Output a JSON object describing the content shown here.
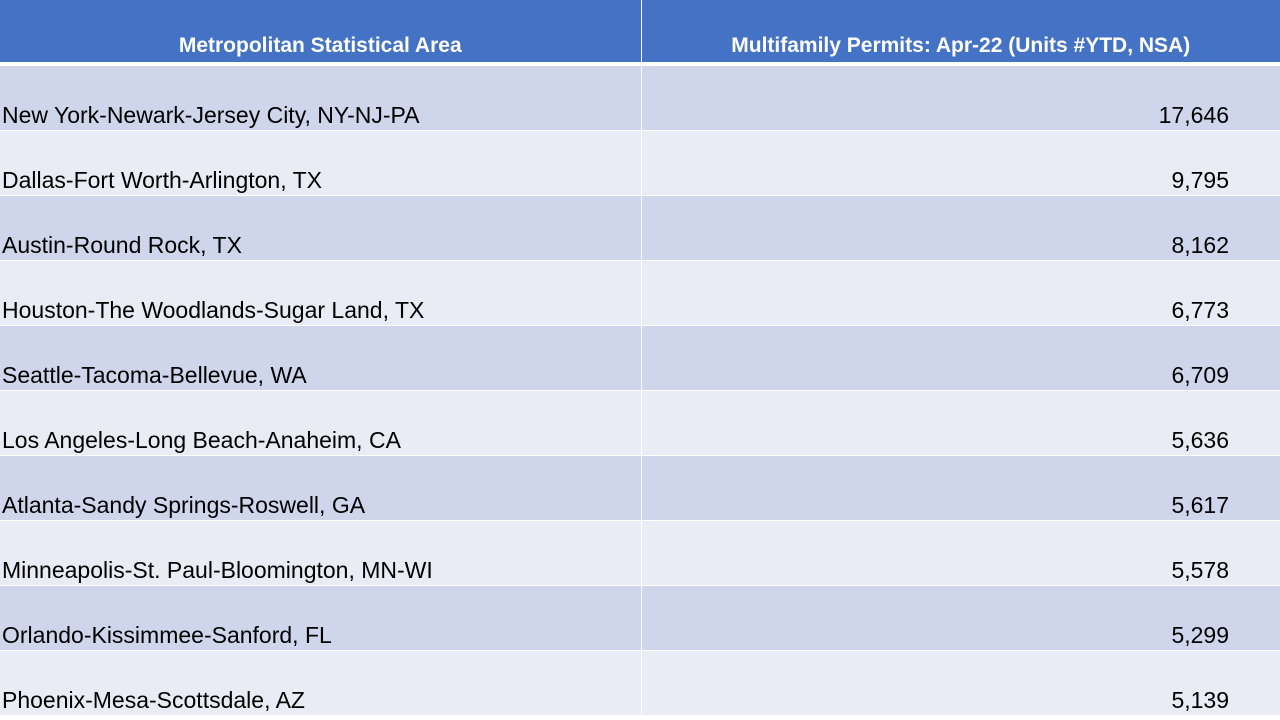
{
  "table": {
    "headers": {
      "msa": "Metropolitan Statistical Area",
      "permits": "Multifamily Permits: Apr-22 (Units #YTD, NSA)"
    },
    "rows": [
      {
        "msa": "New York-Newark-Jersey City, NY-NJ-PA",
        "permits": "17,646"
      },
      {
        "msa": "Dallas-Fort Worth-Arlington, TX",
        "permits": "9,795"
      },
      {
        "msa": "Austin-Round Rock, TX",
        "permits": "8,162"
      },
      {
        "msa": "Houston-The Woodlands-Sugar Land, TX",
        "permits": "6,773"
      },
      {
        "msa": "Seattle-Tacoma-Bellevue, WA",
        "permits": "6,709"
      },
      {
        "msa": "Los Angeles-Long Beach-Anaheim, CA",
        "permits": "5,636"
      },
      {
        "msa": "Atlanta-Sandy Springs-Roswell, GA",
        "permits": "5,617"
      },
      {
        "msa": "Minneapolis-St. Paul-Bloomington, MN-WI",
        "permits": "5,578"
      },
      {
        "msa": "Orlando-Kissimmee-Sanford, FL",
        "permits": "5,299"
      },
      {
        "msa": "Phoenix-Mesa-Scottsdale, AZ",
        "permits": "5,139"
      }
    ]
  },
  "colors": {
    "header_bg": "#4472c4",
    "row_dark": "#cfd5ea",
    "row_light": "#e9ebf5"
  }
}
